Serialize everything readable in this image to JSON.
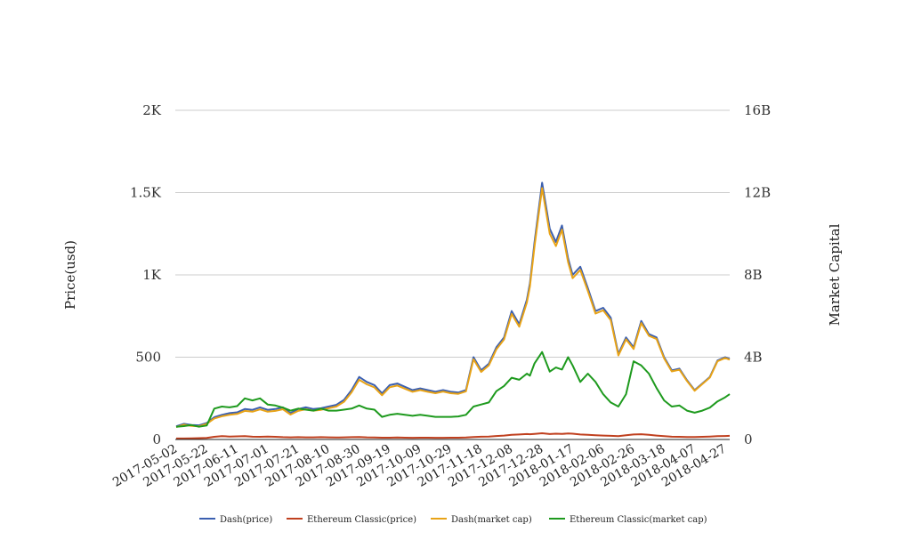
{
  "chart_data": {
    "type": "line",
    "title": "",
    "xlabel": "",
    "ylabel": "Price(usd)",
    "y2label": "Market Capital",
    "ylim": [
      0,
      2000
    ],
    "y2lim": [
      0,
      16000000000
    ],
    "yticks": [
      {
        "value": 0,
        "label": "0"
      },
      {
        "value": 500,
        "label": "500"
      },
      {
        "value": 1000,
        "label": "1K"
      },
      {
        "value": 1500,
        "label": "1.5K"
      },
      {
        "value": 2000,
        "label": "2K"
      }
    ],
    "y2ticks": [
      {
        "value": 0,
        "label": "0"
      },
      {
        "value": 4000000000,
        "label": "4B"
      },
      {
        "value": 8000000000,
        "label": "8B"
      },
      {
        "value": 12000000000,
        "label": "12B"
      },
      {
        "value": 16000000000,
        "label": "16B"
      }
    ],
    "x_categories": [
      "2017-05-02",
      "2017-05-22",
      "2017-06-11",
      "2017-07-01",
      "2017-07-21",
      "2017-08-10",
      "2017-08-30",
      "2017-09-19",
      "2017-10-09",
      "2017-10-29",
      "2017-11-18",
      "2017-12-08",
      "2017-12-28",
      "2018-01-17",
      "2018-02-06",
      "2018-02-26",
      "2018-03-18",
      "2018-04-07",
      "2018-04-27"
    ],
    "x": [
      "2017-05-02",
      "2017-05-07",
      "2017-05-12",
      "2017-05-17",
      "2017-05-22",
      "2017-05-27",
      "2017-06-01",
      "2017-06-06",
      "2017-06-11",
      "2017-06-16",
      "2017-06-21",
      "2017-06-26",
      "2017-07-01",
      "2017-07-06",
      "2017-07-11",
      "2017-07-16",
      "2017-07-21",
      "2017-07-26",
      "2017-07-31",
      "2017-08-05",
      "2017-08-10",
      "2017-08-15",
      "2017-08-20",
      "2017-08-25",
      "2017-08-30",
      "2017-09-04",
      "2017-09-09",
      "2017-09-14",
      "2017-09-19",
      "2017-09-24",
      "2017-09-29",
      "2017-10-04",
      "2017-10-09",
      "2017-10-14",
      "2017-10-19",
      "2017-10-24",
      "2017-10-29",
      "2017-11-03",
      "2017-11-08",
      "2017-11-13",
      "2017-11-18",
      "2017-11-23",
      "2017-11-28",
      "2017-12-03",
      "2017-12-08",
      "2017-12-13",
      "2017-12-18",
      "2017-12-20",
      "2017-12-23",
      "2017-12-28",
      "2018-01-02",
      "2018-01-06",
      "2018-01-10",
      "2018-01-14",
      "2018-01-17",
      "2018-01-22",
      "2018-01-27",
      "2018-02-01",
      "2018-02-06",
      "2018-02-11",
      "2018-02-16",
      "2018-02-21",
      "2018-02-26",
      "2018-03-03",
      "2018-03-08",
      "2018-03-13",
      "2018-03-18",
      "2018-03-23",
      "2018-03-28",
      "2018-04-02",
      "2018-04-07",
      "2018-04-12",
      "2018-04-17",
      "2018-04-22",
      "2018-04-27",
      "2018-04-30"
    ],
    "series": [
      {
        "name": "Dash(price)",
        "axis": "left",
        "color": "#3b5fb0",
        "values": [
          80,
          95,
          88,
          86,
          100,
          135,
          150,
          160,
          165,
          185,
          180,
          195,
          180,
          185,
          195,
          160,
          185,
          195,
          185,
          190,
          200,
          210,
          240,
          300,
          380,
          350,
          330,
          280,
          330,
          340,
          320,
          300,
          310,
          300,
          290,
          300,
          290,
          285,
          300,
          500,
          420,
          460,
          560,
          620,
          780,
          700,
          850,
          950,
          1200,
          1560,
          1280,
          1200,
          1300,
          1100,
          1000,
          1050,
          920,
          780,
          800,
          740,
          520,
          620,
          560,
          720,
          640,
          620,
          500,
          420,
          430,
          360,
          300,
          340,
          380,
          480,
          500,
          490
        ]
      },
      {
        "name": "Ethereum Classic(price)",
        "axis": "left",
        "color": "#c0401f",
        "values": [
          6,
          6,
          7,
          8,
          9,
          16,
          20,
          18,
          19,
          20,
          17,
          16,
          18,
          16,
          14,
          13,
          14,
          13,
          13,
          14,
          13,
          12,
          13,
          14,
          15,
          13,
          12,
          11,
          11,
          12,
          11,
          10,
          11,
          11,
          10,
          10,
          11,
          11,
          12,
          15,
          17,
          18,
          21,
          24,
          28,
          30,
          33,
          32,
          34,
          38,
          33,
          35,
          34,
          36,
          35,
          30,
          28,
          26,
          24,
          22,
          20,
          26,
          30,
          32,
          28,
          24,
          20,
          17,
          16,
          15,
          15,
          16,
          18,
          20,
          21,
          22
        ]
      },
      {
        "name": "Dash(market cap)",
        "axis": "right",
        "color": "#e8a317",
        "values": [
          600000000,
          720000000,
          660000000,
          640000000,
          760000000,
          1020000000,
          1130000000,
          1200000000,
          1240000000,
          1390000000,
          1350000000,
          1460000000,
          1350000000,
          1390000000,
          1470000000,
          1210000000,
          1390000000,
          1470000000,
          1400000000,
          1440000000,
          1520000000,
          1600000000,
          1830000000,
          2290000000,
          2900000000,
          2680000000,
          2530000000,
          2150000000,
          2540000000,
          2620000000,
          2470000000,
          2320000000,
          2400000000,
          2320000000,
          2250000000,
          2330000000,
          2250000000,
          2220000000,
          2340000000,
          3900000000,
          3280000000,
          3600000000,
          4380000000,
          4860000000,
          6100000000,
          5480000000,
          6660000000,
          7440000000,
          9400000000,
          12220000000,
          10000000000,
          9400000000,
          10200000000,
          8620000000,
          7840000000,
          8240000000,
          7220000000,
          6120000000,
          6280000000,
          5800000000,
          4080000000,
          4870000000,
          4400000000,
          5660000000,
          5040000000,
          4880000000,
          3940000000,
          3310000000,
          3390000000,
          2840000000,
          2370000000,
          2690000000,
          3010000000,
          3800000000,
          3960000000,
          3880000000
        ]
      },
      {
        "name": "Ethereum Classic(market cap)",
        "axis": "right",
        "color": "#1e9a1e",
        "values": [
          620000000,
          650000000,
          700000000,
          620000000,
          680000000,
          1500000000,
          1600000000,
          1560000000,
          1620000000,
          2000000000,
          1900000000,
          2000000000,
          1700000000,
          1650000000,
          1550000000,
          1400000000,
          1500000000,
          1450000000,
          1400000000,
          1500000000,
          1400000000,
          1400000000,
          1450000000,
          1500000000,
          1650000000,
          1500000000,
          1450000000,
          1100000000,
          1200000000,
          1250000000,
          1200000000,
          1150000000,
          1200000000,
          1150000000,
          1100000000,
          1100000000,
          1100000000,
          1120000000,
          1200000000,
          1600000000,
          1700000000,
          1800000000,
          2350000000,
          2600000000,
          3000000000,
          2900000000,
          3200000000,
          3100000000,
          3700000000,
          4250000000,
          3300000000,
          3500000000,
          3400000000,
          4000000000,
          3600000000,
          2800000000,
          3200000000,
          2800000000,
          2200000000,
          1800000000,
          1600000000,
          2200000000,
          3800000000,
          3600000000,
          3200000000,
          2500000000,
          1900000000,
          1600000000,
          1650000000,
          1400000000,
          1300000000,
          1400000000,
          1550000000,
          1850000000,
          2050000000,
          2200000000
        ]
      }
    ],
    "legend": "bottom-center",
    "grid": true
  }
}
